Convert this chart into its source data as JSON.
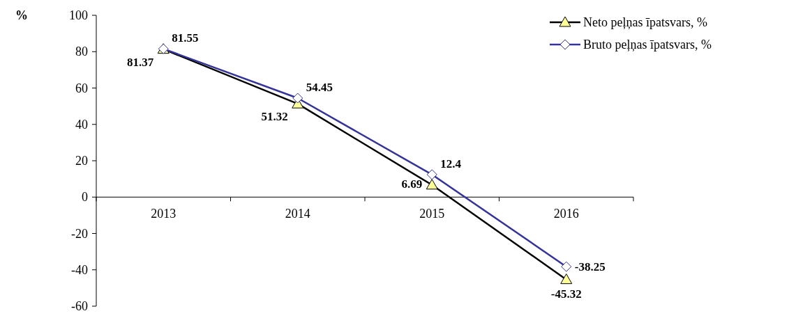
{
  "chart_data": {
    "type": "line",
    "ylabel": "%",
    "categories": [
      "2013",
      "2014",
      "2015",
      "2016"
    ],
    "series": [
      {
        "name": "Neto peļņas īpatsvars, %",
        "color": "#000000",
        "marker": "triangle",
        "values": [
          81.37,
          51.32,
          6.69,
          -45.32
        ]
      },
      {
        "name": "Bruto peļņas īpatsvars, %",
        "color": "#333399",
        "marker": "diamond",
        "values": [
          81.55,
          54.45,
          12.4,
          -38.25
        ]
      }
    ],
    "ylim": [
      -60,
      100
    ],
    "yticks": [
      -60,
      -40,
      -20,
      0,
      20,
      40,
      60,
      80,
      100
    ],
    "data_labels": true,
    "legend": "top right",
    "grid": false
  }
}
